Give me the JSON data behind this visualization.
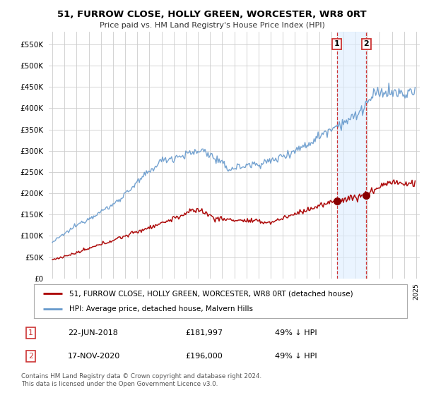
{
  "title": "51, FURROW CLOSE, HOLLY GREEN, WORCESTER, WR8 0RT",
  "subtitle": "Price paid vs. HM Land Registry's House Price Index (HPI)",
  "legend_line1": "51, FURROW CLOSE, HOLLY GREEN, WORCESTER, WR8 0RT (detached house)",
  "legend_line2": "HPI: Average price, detached house, Malvern Hills",
  "footer": "Contains HM Land Registry data © Crown copyright and database right 2024.\nThis data is licensed under the Open Government Licence v3.0.",
  "transaction1_label": "1",
  "transaction1_date": "22-JUN-2018",
  "transaction1_price": "£181,997",
  "transaction1_hpi": "49% ↓ HPI",
  "transaction2_label": "2",
  "transaction2_date": "17-NOV-2020",
  "transaction2_price": "£196,000",
  "transaction2_hpi": "49% ↓ HPI",
  "line_color_red": "#aa0000",
  "line_color_blue": "#6699cc",
  "shade_color": "#ddeeff",
  "vline_color": "#cc3333",
  "marker_color_red": "#880000",
  "background_color": "#ffffff",
  "grid_color": "#cccccc",
  "ylim": [
    0,
    580000
  ],
  "yticks": [
    0,
    50000,
    100000,
    150000,
    200000,
    250000,
    300000,
    350000,
    400000,
    450000,
    500000,
    550000
  ],
  "transaction1_x": 2018.47,
  "transaction1_y": 181997,
  "transaction2_x": 2020.88,
  "transaction2_y": 196000,
  "vline_x1": 2018.47,
  "vline_x2": 2020.88,
  "xmin": 1994.7,
  "xmax": 2025.3
}
